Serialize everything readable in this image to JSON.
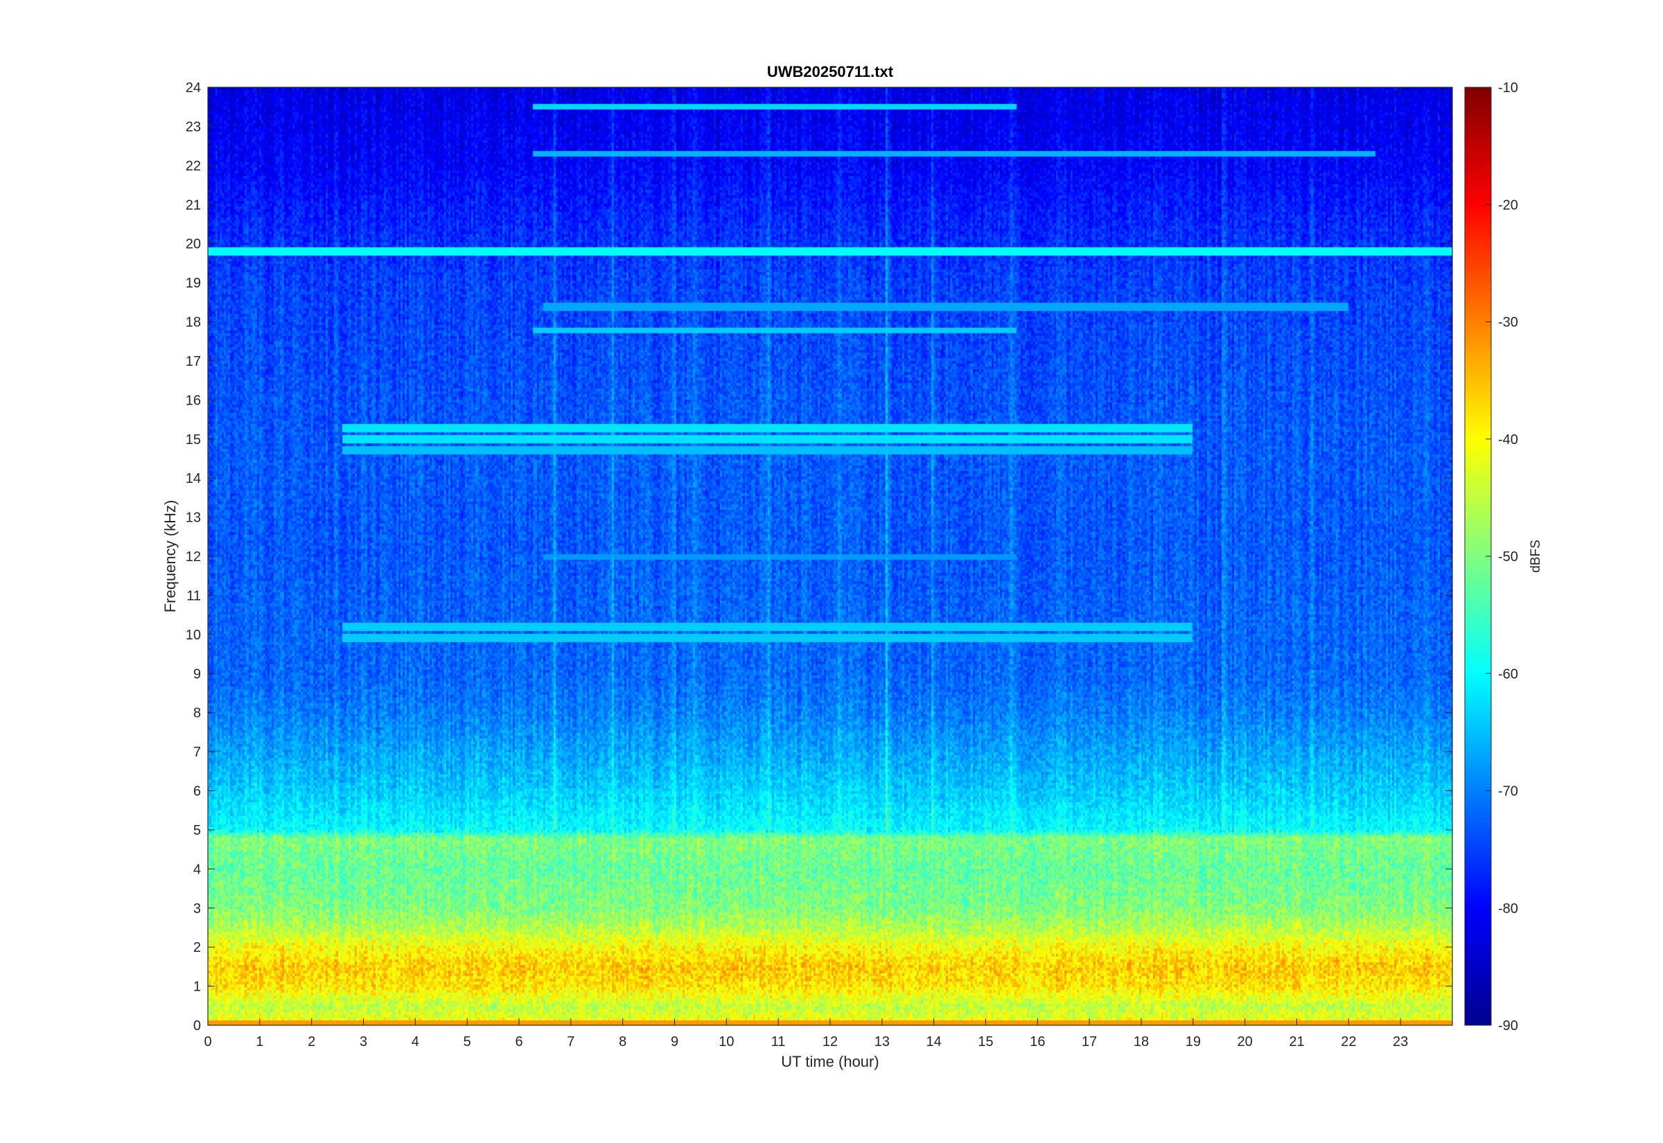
{
  "chart_data": {
    "type": "heatmap",
    "title": "UWB20250711.txt",
    "xlabel": "UT time (hour)",
    "ylabel": "Frequency (kHz)",
    "xlim": [
      0,
      24
    ],
    "ylim": [
      0,
      24
    ],
    "x_ticks": [
      "0",
      "1",
      "2",
      "3",
      "4",
      "5",
      "6",
      "7",
      "8",
      "9",
      "10",
      "11",
      "12",
      "13",
      "14",
      "15",
      "16",
      "17",
      "18",
      "19",
      "20",
      "21",
      "22",
      "23"
    ],
    "y_ticks": [
      "0",
      "1",
      "2",
      "3",
      "4",
      "5",
      "6",
      "7",
      "8",
      "9",
      "10",
      "11",
      "12",
      "13",
      "14",
      "15",
      "16",
      "17",
      "18",
      "19",
      "20",
      "21",
      "22",
      "23",
      "24"
    ],
    "colorbar": {
      "label": "dBFS",
      "range": [
        -90,
        -10
      ],
      "ticks": [
        "-10",
        "-20",
        "-30",
        "-40",
        "-50",
        "-60",
        "-70",
        "-80",
        "-90"
      ],
      "colormap": "jet"
    },
    "spectral_bands_khz_dbfs": [
      {
        "freq_khz": 0.0,
        "level_dbfs": -40
      },
      {
        "freq_khz": 0.5,
        "level_dbfs": -45
      },
      {
        "freq_khz": 1.0,
        "level_dbfs": -38
      },
      {
        "freq_khz": 1.5,
        "level_dbfs": -36
      },
      {
        "freq_khz": 2.0,
        "level_dbfs": -40
      },
      {
        "freq_khz": 2.5,
        "level_dbfs": -46
      },
      {
        "freq_khz": 3.0,
        "level_dbfs": -50
      },
      {
        "freq_khz": 4.0,
        "level_dbfs": -52
      },
      {
        "freq_khz": 4.8,
        "level_dbfs": -50
      },
      {
        "freq_khz": 5.0,
        "level_dbfs": -60
      },
      {
        "freq_khz": 6.0,
        "level_dbfs": -64
      },
      {
        "freq_khz": 7.0,
        "level_dbfs": -67
      },
      {
        "freq_khz": 8.0,
        "level_dbfs": -70
      },
      {
        "freq_khz": 9.0,
        "level_dbfs": -72
      },
      {
        "freq_khz": 10.0,
        "level_dbfs": -72
      },
      {
        "freq_khz": 12.0,
        "level_dbfs": -73
      },
      {
        "freq_khz": 15.0,
        "level_dbfs": -73
      },
      {
        "freq_khz": 17.0,
        "level_dbfs": -74
      },
      {
        "freq_khz": 19.0,
        "level_dbfs": -75
      },
      {
        "freq_khz": 20.5,
        "level_dbfs": -77
      },
      {
        "freq_khz": 22.0,
        "level_dbfs": -80
      },
      {
        "freq_khz": 24.0,
        "level_dbfs": -82
      }
    ],
    "tonal_lines": [
      {
        "freq_khz": 19.8,
        "level_dbfs": -60,
        "t_start": 0,
        "t_end": 24
      },
      {
        "freq_khz": 23.5,
        "level_dbfs": -63,
        "t_start": 6.3,
        "t_end": 15.6
      },
      {
        "freq_khz": 22.3,
        "level_dbfs": -66,
        "t_start": 6.3,
        "t_end": 22.5
      },
      {
        "freq_khz": 17.8,
        "level_dbfs": -64,
        "t_start": 6.3,
        "t_end": 15.6
      },
      {
        "freq_khz": 18.4,
        "level_dbfs": -67,
        "t_start": 6.5,
        "t_end": 22
      },
      {
        "freq_khz": 15.3,
        "level_dbfs": -62,
        "t_start": 2.6,
        "t_end": 19
      },
      {
        "freq_khz": 15.0,
        "level_dbfs": -62,
        "t_start": 2.6,
        "t_end": 19
      },
      {
        "freq_khz": 14.7,
        "level_dbfs": -65,
        "t_start": 2.6,
        "t_end": 19
      },
      {
        "freq_khz": 10.2,
        "level_dbfs": -64,
        "t_start": 2.6,
        "t_end": 19
      },
      {
        "freq_khz": 9.9,
        "level_dbfs": -64,
        "t_start": 2.6,
        "t_end": 19
      },
      {
        "freq_khz": 12.0,
        "level_dbfs": -68,
        "t_start": 6.5,
        "t_end": 15.6
      },
      {
        "freq_khz": 6.0,
        "level_dbfs": -65,
        "t_start": 6.3,
        "t_end": 15.6
      },
      {
        "freq_khz": 0.05,
        "level_dbfs": -32,
        "t_start": 0,
        "t_end": 24
      }
    ],
    "broadband_events_hour": [
      7.8,
      9.0,
      9.4,
      13.1,
      15.5,
      6.7,
      10.8,
      12.2,
      14.0,
      19.6,
      21.3
    ]
  }
}
